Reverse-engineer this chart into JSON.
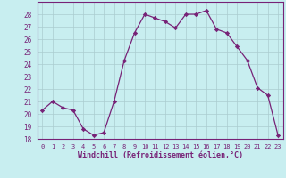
{
  "x": [
    0,
    1,
    2,
    3,
    4,
    5,
    6,
    7,
    8,
    9,
    10,
    11,
    12,
    13,
    14,
    15,
    16,
    17,
    18,
    19,
    20,
    21,
    22,
    23
  ],
  "y": [
    20.3,
    21.0,
    20.5,
    20.3,
    18.8,
    18.3,
    18.5,
    21.0,
    24.3,
    26.5,
    28.0,
    27.7,
    27.4,
    26.9,
    28.0,
    28.0,
    28.3,
    26.8,
    26.5,
    25.4,
    24.3,
    22.1,
    21.5,
    18.3
  ],
  "line_color": "#772277",
  "marker": "D",
  "marker_size": 2.2,
  "bg_color": "#c8eef0",
  "grid_color": "#aaccd0",
  "xlabel": "Windchill (Refroidissement éolien,°C)",
  "xlabel_color": "#772277",
  "tick_color": "#772277",
  "spine_color": "#772277",
  "ylim": [
    18,
    29
  ],
  "xlim": [
    -0.5,
    23.5
  ],
  "yticks": [
    18,
    19,
    20,
    21,
    22,
    23,
    24,
    25,
    26,
    27,
    28
  ],
  "xticks": [
    0,
    1,
    2,
    3,
    4,
    5,
    6,
    7,
    8,
    9,
    10,
    11,
    12,
    13,
    14,
    15,
    16,
    17,
    18,
    19,
    20,
    21,
    22,
    23
  ],
  "xtick_labels": [
    "0",
    "1",
    "2",
    "3",
    "4",
    "5",
    "6",
    "7",
    "8",
    "9",
    "10",
    "11",
    "12",
    "13",
    "14",
    "15",
    "16",
    "17",
    "18",
    "19",
    "20",
    "21",
    "22",
    "23"
  ],
  "ytick_labels": [
    "18",
    "19",
    "20",
    "21",
    "22",
    "23",
    "24",
    "25",
    "26",
    "27",
    "28"
  ]
}
